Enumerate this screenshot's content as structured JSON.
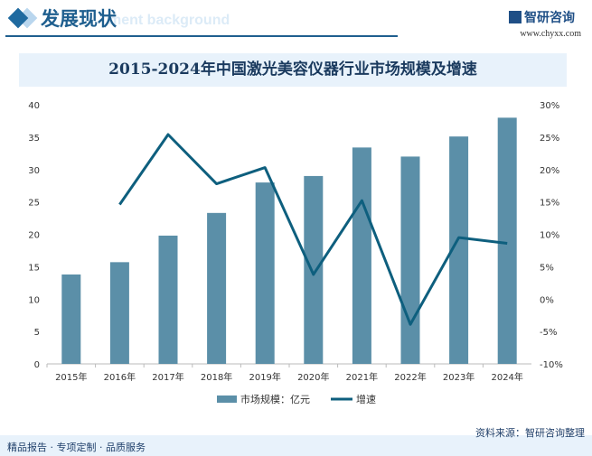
{
  "header": {
    "title": "发展现状",
    "subtitle": "ment background",
    "logo": "智研咨询",
    "url": "www.chyxx.com"
  },
  "footer": {
    "left": "精品报告 · 专项定制 · 品质服务",
    "source": "资料来源：智研咨询整理"
  },
  "colors": {
    "bar": "#5b8fa8",
    "line": "#0e5f7e",
    "title": "#1a3a5e"
  },
  "chart_data": {
    "type": "bar+line",
    "title": "2015-2024年中国激光美容仪器行业市场规模及增速",
    "categories": [
      "2015年",
      "2016年",
      "2017年",
      "2018年",
      "2019年",
      "2020年",
      "2021年",
      "2022年",
      "2023年",
      "2024年"
    ],
    "series": [
      {
        "name": "市场规模：亿元",
        "type": "bar",
        "axis": "left",
        "values": [
          13.8,
          15.7,
          19.8,
          23.3,
          28.0,
          29.0,
          33.4,
          32.0,
          35.1,
          38.0
        ]
      },
      {
        "name": "增速",
        "type": "line",
        "axis": "right",
        "values": [
          null,
          14.6,
          25.4,
          17.8,
          20.3,
          3.8,
          15.2,
          -3.9,
          9.5,
          8.6
        ]
      }
    ],
    "ylim": [
      0,
      40
    ],
    "yticks": [
      "0",
      "5",
      "10",
      "15",
      "20",
      "25",
      "30",
      "35",
      "40"
    ],
    "y2lim": [
      -10,
      30
    ],
    "y2ticks": [
      "-10%",
      "-5%",
      "0%",
      "5%",
      "10%",
      "15%",
      "20%",
      "25%",
      "30%"
    ],
    "grid": false,
    "legend": "bottom"
  }
}
